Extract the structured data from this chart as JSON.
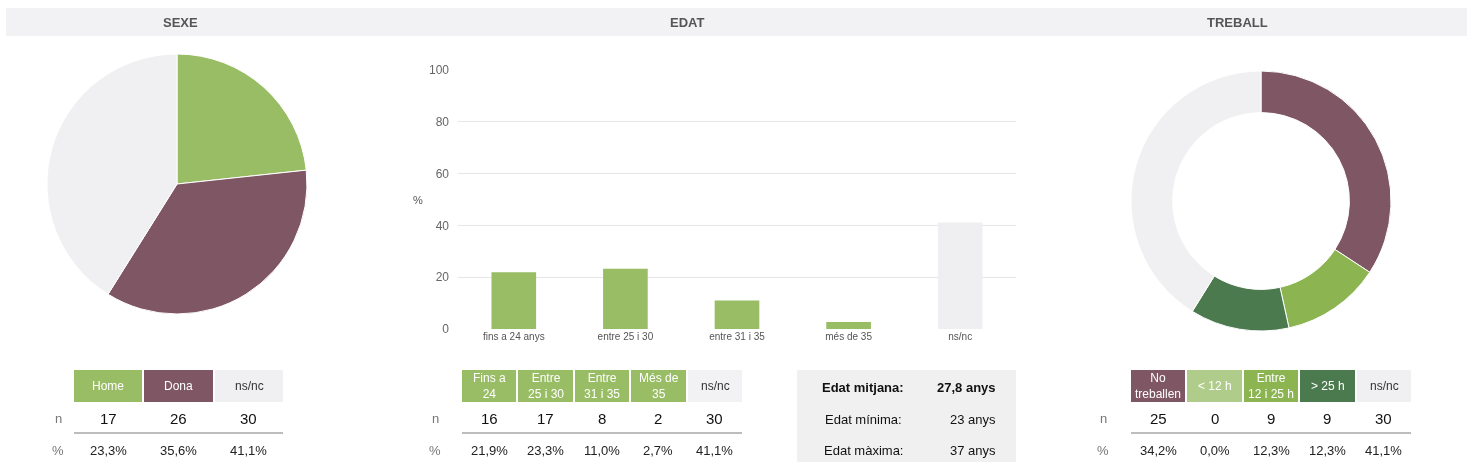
{
  "chart_data": [
    {
      "type": "pie",
      "title": "SEXE",
      "categories": [
        "Home",
        "Dona",
        "ns/nc"
      ],
      "values": [
        23.3,
        35.6,
        41.1
      ],
      "colors": [
        "#98bd64",
        "#7f5663",
        "#f0f0f2"
      ],
      "legend": "bottom",
      "annotations": [
        "n",
        "17",
        "26",
        "30",
        "%",
        "23,3%",
        "35,6%",
        "41,1%"
      ]
    },
    {
      "type": "bar",
      "title": "EDAT",
      "categories": [
        "fins a 24 anys",
        "entre 25 i 30",
        "entre 31 i 35",
        "més de 35",
        "ns/nc"
      ],
      "values": [
        21.9,
        23.3,
        11.0,
        2.7,
        41.1
      ],
      "colors": [
        "#98bd64",
        "#98bd64",
        "#98bd64",
        "#98bd64",
        "#efeff1"
      ],
      "ylabel": "%",
      "ylim": [
        0,
        100
      ],
      "yticks": [
        0,
        20,
        40,
        60,
        80,
        100
      ],
      "grid": "y"
    },
    {
      "type": "other",
      "categories": [
        "Fins a 24",
        "Entre 25 i 30",
        "Entre 31 i 35",
        "Més de 35",
        "ns/nc"
      ],
      "values": [
        16,
        17,
        8,
        2,
        30
      ],
      "colors": [
        "#98bd64",
        "#98bd64",
        "#98bd64",
        "#98bd64",
        "#f2f2f4"
      ],
      "data_labels": true,
      "annotations": [
        "n",
        "%",
        "21,9%",
        "23,3%",
        "11,0%",
        "2,7%",
        "41,1%"
      ]
    },
    {
      "type": "other",
      "annotations": [
        "Edat mitjana:",
        "27,8 anys",
        "Edat mínima:",
        "23 anys",
        "Edat màxima:",
        "37 anys"
      ]
    },
    {
      "type": "donut",
      "title": "TREBALL",
      "categories": [
        "No treballen",
        "< 12 h",
        "Entre 12 i 25 h",
        "> 25 h",
        "ns/nc"
      ],
      "values": [
        34.2,
        0.0,
        12.3,
        12.3,
        41.1
      ],
      "colors": [
        "#7f5663",
        "#b0cc8b",
        "#8cb552",
        "#4c7a4f",
        "#f0f0f2"
      ],
      "legend": "bottom",
      "annotations": [
        "n",
        "25",
        "0",
        "9",
        "9",
        "30",
        "%",
        "34,2%",
        "0,0%",
        "12,3%",
        "12,3%",
        "41,1%"
      ]
    }
  ]
}
